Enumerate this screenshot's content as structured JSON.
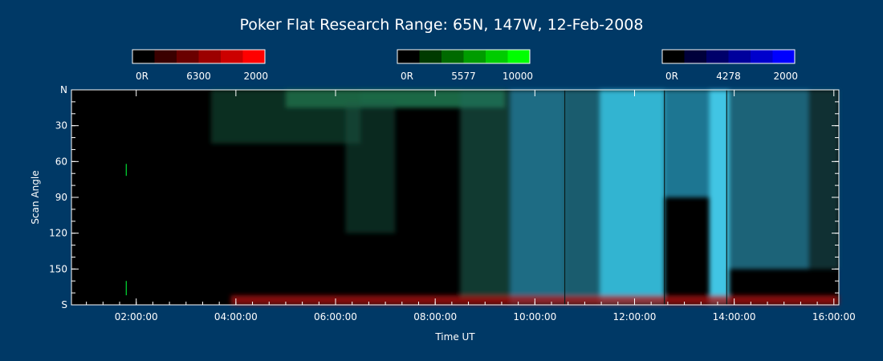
{
  "chart_data": {
    "type": "heatmap",
    "title": "Poker Flat Research Range: 65N, 147W, 12-Feb-2008",
    "xlabel": "Time UT",
    "ylabel": "Scan Angle",
    "x_ticks": [
      "02:00:00",
      "04:00:00",
      "06:00:00",
      "08:00:00",
      "10:00:00",
      "12:00:00",
      "14:00:00",
      "16:00:00"
    ],
    "x_tick_hours": [
      2,
      4,
      6,
      8,
      10,
      12,
      14,
      16
    ],
    "xlim_hours": [
      0.7,
      16.1
    ],
    "y_ticks": [
      "N",
      "30",
      "60",
      "90",
      "120",
      "150",
      "S"
    ],
    "y_tick_values": [
      0,
      30,
      60,
      90,
      120,
      150,
      180
    ],
    "ylim": [
      0,
      180
    ],
    "colorbars": [
      {
        "name": "6300",
        "min_label": "0R",
        "max_label": "2000",
        "colors": [
          "#000000",
          "#3a0000",
          "#6a0000",
          "#9c0000",
          "#cc0000",
          "#ff0000"
        ]
      },
      {
        "name": "5577",
        "min_label": "0R",
        "max_label": "10000",
        "colors": [
          "#000000",
          "#003a00",
          "#006a00",
          "#009c00",
          "#00cc00",
          "#00ff00"
        ]
      },
      {
        "name": "4278",
        "min_label": "0R",
        "max_label": "2000",
        "colors": [
          "#000000",
          "#00003a",
          "#00006a",
          "#00009c",
          "#0000cc",
          "#0000ff"
        ]
      }
    ],
    "emission_regions": [
      {
        "channel": "5577",
        "color": "#1f7a52",
        "t_start": 5.0,
        "t_end": 9.4,
        "angle_start": 0,
        "angle_end": 15,
        "intensity": 0.85
      },
      {
        "channel": "5577",
        "color": "#1b5e40",
        "t_start": 3.5,
        "t_end": 6.5,
        "angle_start": 0,
        "angle_end": 45,
        "intensity": 0.5
      },
      {
        "channel": "5577",
        "color": "#1a5c48",
        "t_start": 6.2,
        "t_end": 7.2,
        "angle_start": 10,
        "angle_end": 120,
        "intensity": 0.45
      },
      {
        "channel": "5577",
        "color": "#1c6a5a",
        "t_start": 8.5,
        "t_end": 9.5,
        "angle_start": 0,
        "angle_end": 175,
        "intensity": 0.55
      },
      {
        "channel": "4278",
        "color": "#2a90b0",
        "t_start": 9.5,
        "t_end": 10.6,
        "angle_start": 0,
        "angle_end": 180,
        "intensity": 0.75
      },
      {
        "channel": "4278",
        "color": "#2fa8c8",
        "t_start": 10.6,
        "t_end": 11.3,
        "angle_start": 0,
        "angle_end": 180,
        "intensity": 0.55
      },
      {
        "channel": "4278",
        "color": "#38c8e8",
        "t_start": 11.3,
        "t_end": 12.6,
        "angle_start": 0,
        "angle_end": 180,
        "intensity": 0.9
      },
      {
        "channel": "4278",
        "color": "#2aa8d0",
        "t_start": 12.6,
        "t_end": 13.5,
        "angle_start": 0,
        "angle_end": 90,
        "intensity": 0.7
      },
      {
        "channel": "4278",
        "color": "#45d0f0",
        "t_start": 13.5,
        "t_end": 13.9,
        "angle_start": 0,
        "angle_end": 180,
        "intensity": 0.95
      },
      {
        "channel": "4278",
        "color": "#2a98b8",
        "t_start": 13.9,
        "t_end": 15.5,
        "angle_start": 0,
        "angle_end": 150,
        "intensity": 0.65
      },
      {
        "channel": "4278",
        "color": "#1f6a70",
        "t_start": 15.5,
        "t_end": 16.1,
        "angle_start": 0,
        "angle_end": 150,
        "intensity": 0.45
      },
      {
        "channel": "6300",
        "color": "#b01010",
        "t_start": 3.9,
        "t_end": 16.1,
        "angle_start": 172,
        "angle_end": 180,
        "intensity": 0.75
      }
    ],
    "grid": false
  }
}
